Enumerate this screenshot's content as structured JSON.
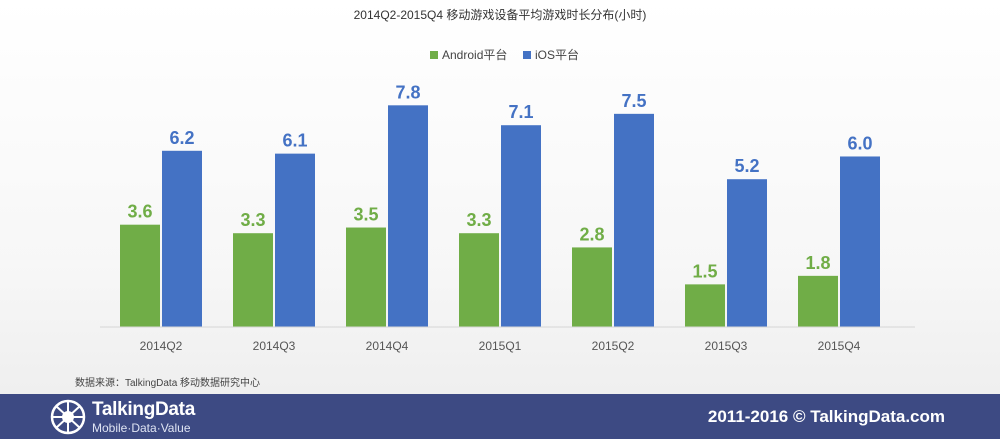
{
  "chart_data": {
    "type": "bar",
    "title": "2014Q2-2015Q4  移动游戏设备平均游戏时长分布(小时)",
    "categories": [
      "2014Q2",
      "2014Q3",
      "2014Q4",
      "2015Q1",
      "2015Q2",
      "2015Q3",
      "2015Q4"
    ],
    "series": [
      {
        "name": "Android平台",
        "color": "#70ad47",
        "values": [
          3.6,
          3.3,
          3.5,
          3.3,
          2.8,
          1.5,
          1.8
        ]
      },
      {
        "name": "iOS平台",
        "color": "#4472c4",
        "values": [
          6.2,
          6.1,
          7.8,
          7.1,
          7.5,
          5.2,
          6.0
        ]
      }
    ],
    "xlabel": "",
    "ylabel": "",
    "ylim": [
      0,
      9.5
    ],
    "grid": false,
    "legend_position": "top-center",
    "data_labels": true,
    "label_decimals": 1
  },
  "source_note": "数据来源：TalkingData   移动数据研究中心",
  "footer": {
    "logo_name": "TalkingData",
    "logo_tagline": "Mobile·Data·Value",
    "copyright": "2011-2016 © TalkingData.com",
    "background_color": "#3d4a83"
  }
}
